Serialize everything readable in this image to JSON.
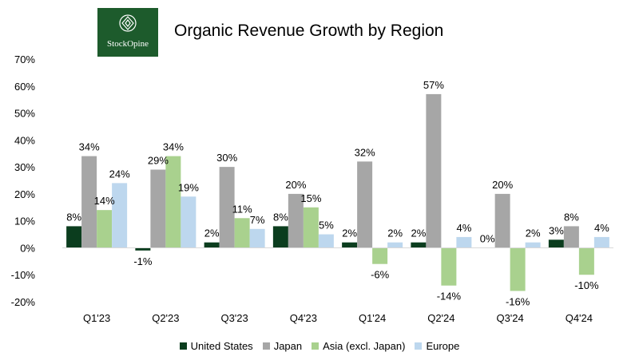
{
  "logo": {
    "text": "StockOpine",
    "color": "#1d5b2c"
  },
  "chart_data": {
    "type": "bar",
    "title": "Organic Revenue Growth by Region",
    "categories": [
      "Q1'23",
      "Q2'23",
      "Q3'23",
      "Q4'23",
      "Q1'24",
      "Q2'24",
      "Q3'24",
      "Q4'24"
    ],
    "series": [
      {
        "name": "United States",
        "color": "#0b3d1e",
        "values": [
          8,
          -1,
          2,
          8,
          2,
          2,
          0,
          3
        ]
      },
      {
        "name": "Japan",
        "color": "#a6a6a6",
        "values": [
          34,
          29,
          30,
          20,
          32,
          57,
          20,
          8
        ]
      },
      {
        "name": "Asia (excl. Japan)",
        "color": "#a9d18e",
        "values": [
          14,
          34,
          11,
          15,
          -6,
          -14,
          -16,
          -10
        ]
      },
      {
        "name": "Europe",
        "color": "#bdd7ee",
        "values": [
          24,
          19,
          7,
          5,
          2,
          4,
          2,
          4
        ]
      }
    ],
    "ylim": [
      -20,
      70
    ],
    "yticks": [
      -20,
      -10,
      0,
      10,
      20,
      30,
      40,
      50,
      60,
      70
    ],
    "ytick_labels": [
      "-20%",
      "-10%",
      "0%",
      "10%",
      "20%",
      "30%",
      "40%",
      "50%",
      "60%",
      "70%"
    ],
    "xlabel": "",
    "ylabel": "",
    "value_suffix": "%",
    "grid": false,
    "legend_position": "bottom"
  }
}
